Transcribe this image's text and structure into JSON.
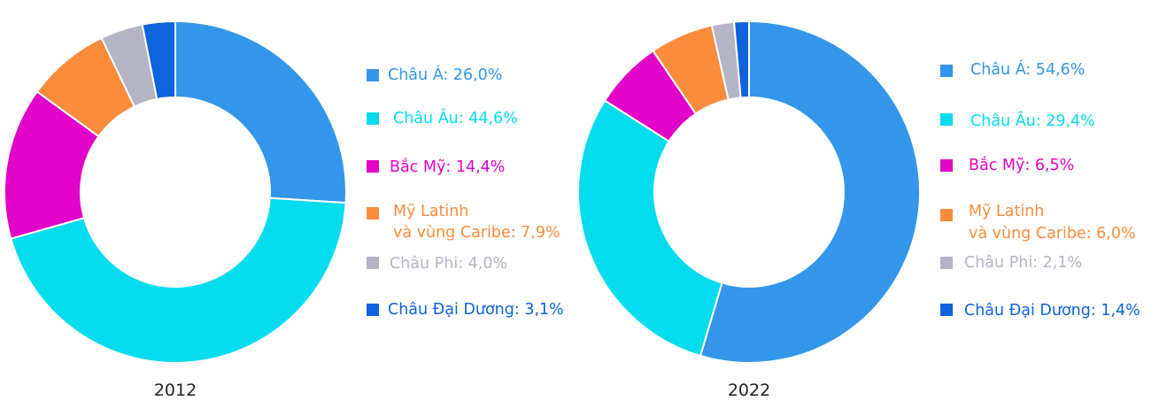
{
  "chart_data": [
    {
      "type": "pie",
      "xlabel": "2012",
      "categories": [
        "Châu Á",
        "Châu Âu",
        "Bắc Mỹ",
        "Mỹ Latinh\nvà vùng Caribe",
        "Châu Phi",
        "Châu Đại Dương"
      ],
      "values": [
        26.0,
        44.6,
        14.4,
        7.9,
        4.0,
        3.1
      ],
      "colors": [
        "#3396ea",
        "#05dcee",
        "#e204c8",
        "#fb8c3c",
        "#b4b4c4",
        "#0f63dc"
      ],
      "legend": [
        {
          "name": "Châu Á: 26,0%"
        },
        {
          "name": "Châu Âu: 44,6%"
        },
        {
          "name": "Bắc Mỹ: 14,4%"
        },
        {
          "name": "Mỹ Latinh",
          "name2": "và vùng Caribe: 7,9%"
        },
        {
          "name": "Châu Phi: 4,0%"
        },
        {
          "name": "Châu Đại Dương: 3,1%"
        }
      ],
      "legend_placement": "right"
    },
    {
      "type": "pie",
      "xlabel": "2022",
      "categories": [
        "Châu Á",
        "Châu Âu",
        "Bắc Mỹ",
        "Mỹ Latinh\nvà vùng Caribe",
        "Châu Phi",
        "Châu Đại Dương"
      ],
      "values": [
        54.6,
        29.4,
        6.5,
        6.0,
        2.1,
        1.4
      ],
      "colors": [
        "#3396ea",
        "#05dcee",
        "#e204c8",
        "#fb8c3c",
        "#b4b4c4",
        "#0f63dc"
      ],
      "legend": [
        {
          "name": "Châu Á: 54,6%"
        },
        {
          "name": "Châu Âu: 29,4%"
        },
        {
          "name": "Bắc Mỹ: 6,5%"
        },
        {
          "name": "Mỹ Latinh",
          "name2": "và vùng Caribe: 6,0%"
        },
        {
          "name": "Châu Phi: 2,1%"
        },
        {
          "name": "Châu Đại Dương: 1,4%"
        }
      ],
      "legend_placement": "right"
    }
  ]
}
